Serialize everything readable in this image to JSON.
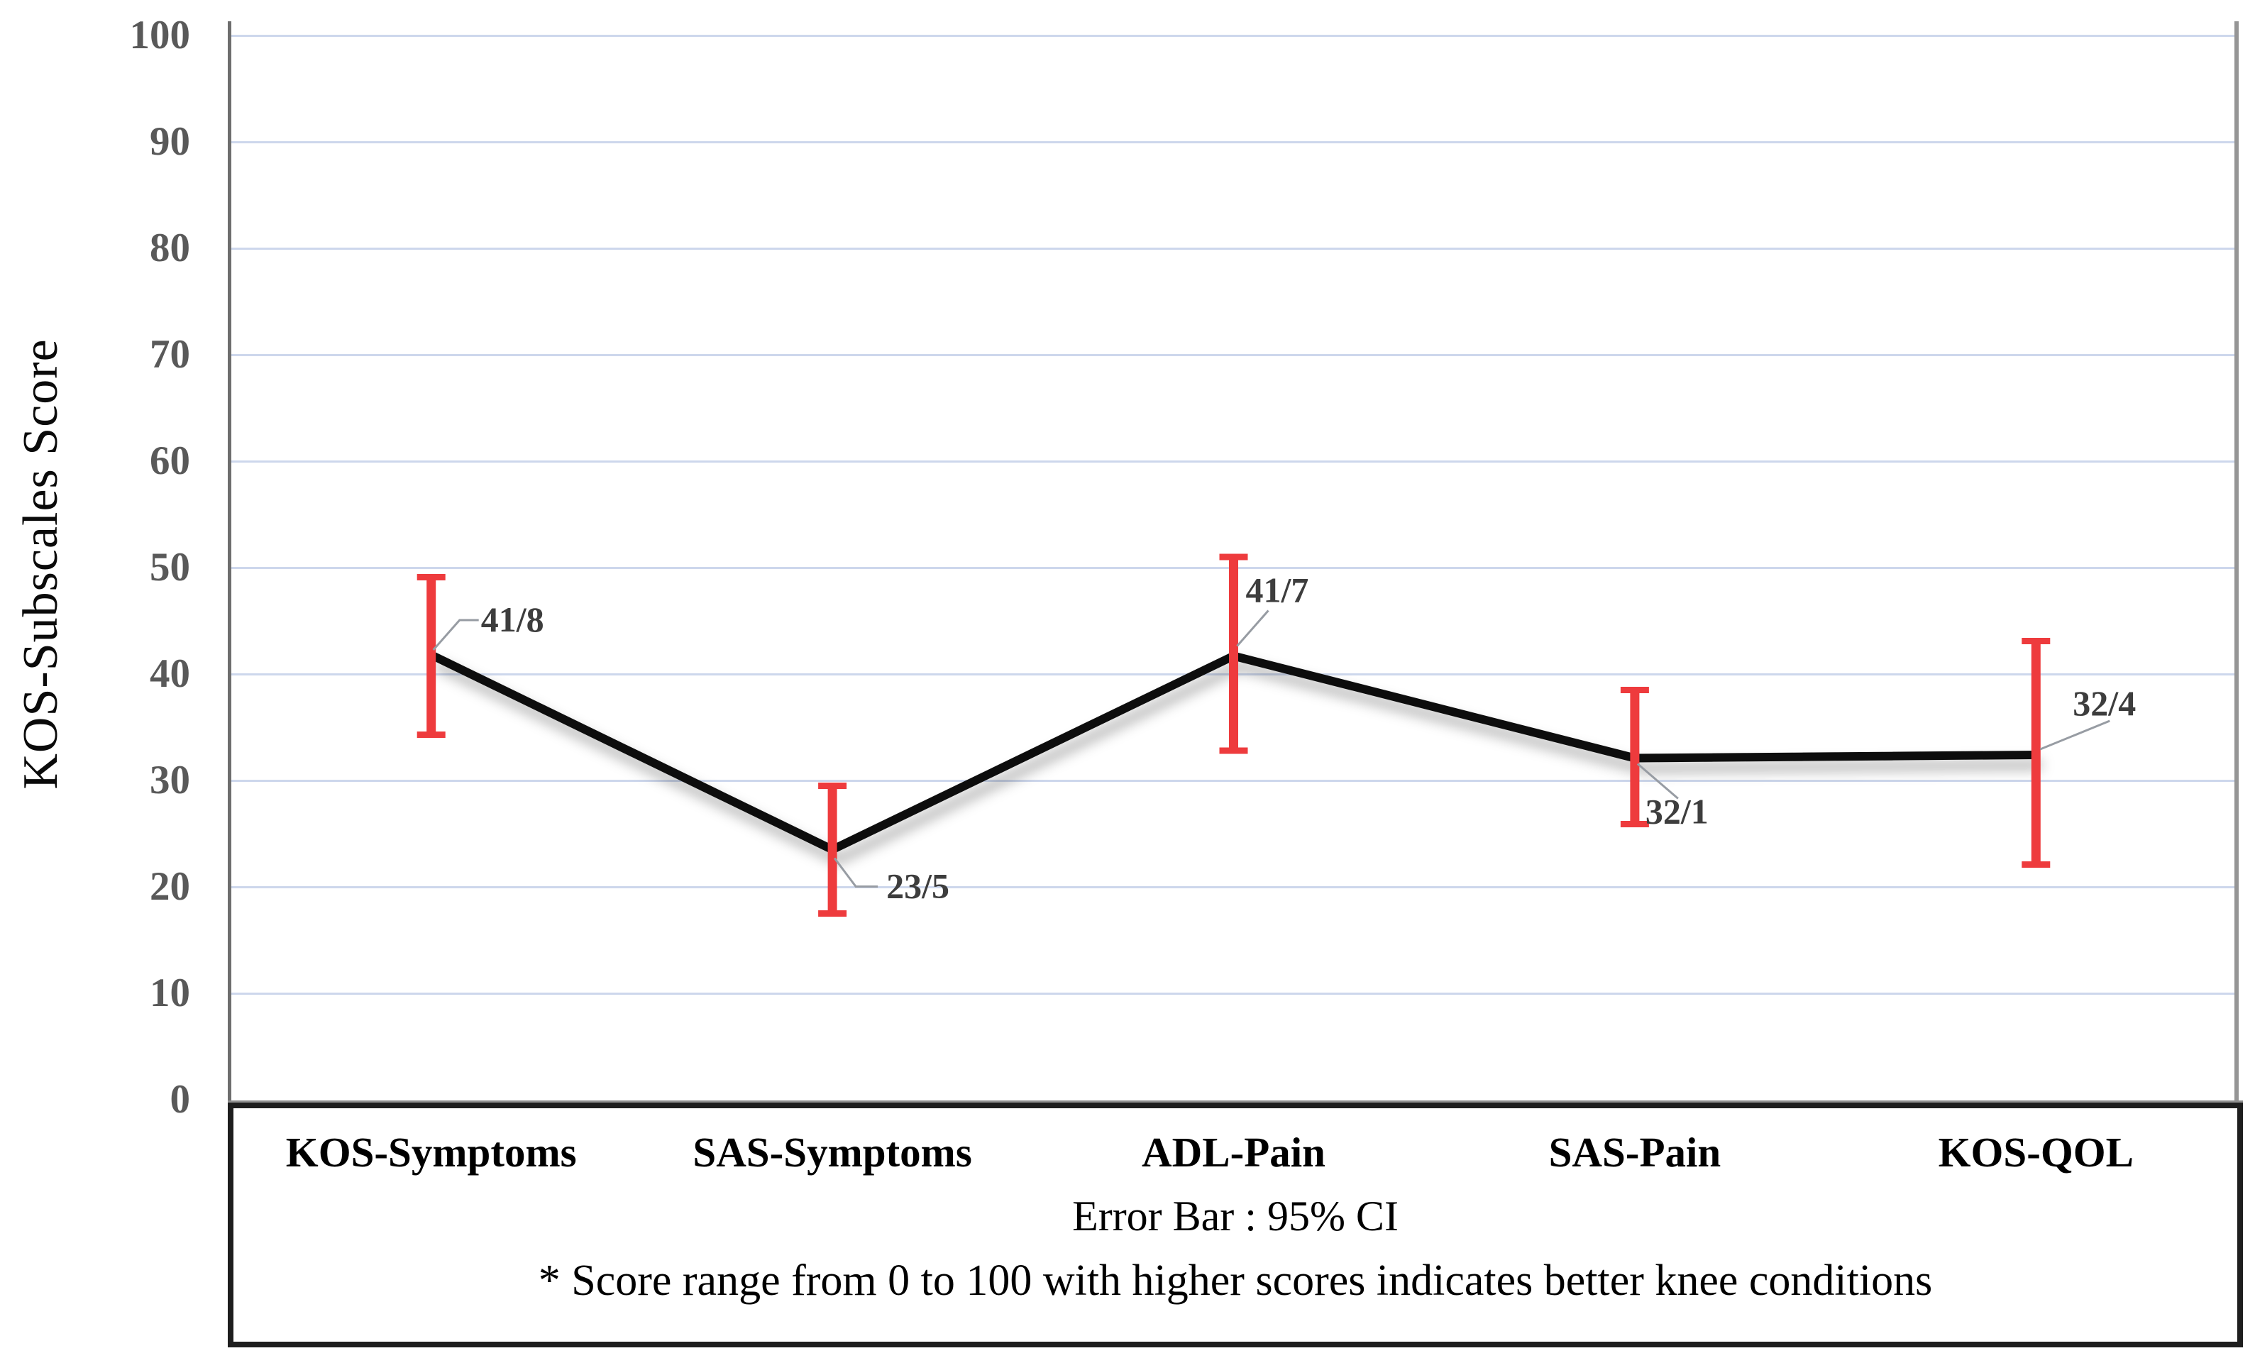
{
  "chart_data": {
    "type": "line",
    "categories": [
      "KOS-Symptoms",
      "SAS-Symptoms",
      "ADL-Pain",
      "SAS-Pain",
      "KOS-QOL"
    ],
    "values": [
      41.8,
      23.5,
      41.7,
      32.1,
      32.4
    ],
    "point_labels": [
      "41/8",
      "23/5",
      "41/7",
      "32/1",
      "32/4"
    ],
    "ci_low": [
      34.3,
      17.5,
      32.8,
      25.9,
      22.1
    ],
    "ci_high": [
      49.1,
      29.5,
      51.0,
      38.5,
      43.1
    ],
    "xlabel": "",
    "ylabel": "KOS-Subscales Score",
    "ylim": [
      0,
      100
    ],
    "yticks": [
      100,
      90,
      80,
      70,
      60,
      50,
      40,
      30,
      20,
      10,
      0
    ],
    "grid": true,
    "legend_position": "bottom",
    "legend_note": "Error Bar : 95% CI",
    "footnote": "* Score range from 0 to 100 with higher scores indicates better knee conditions",
    "line_color": "#0e0e0e",
    "error_bar_color": "#ee3b3d",
    "gridline_color": "#cdd7ec",
    "axis_color": "#6e6e6e",
    "tick_label_color": "#595959",
    "point_label_color": "#3d3d3d"
  }
}
